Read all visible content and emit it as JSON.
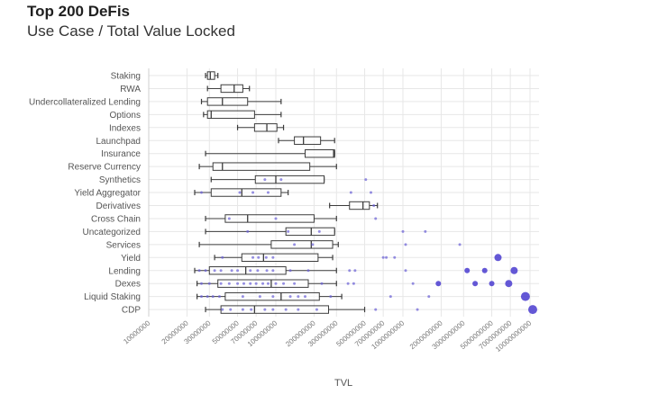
{
  "chart_data": {
    "type": "box",
    "title": "Top 200 DeFis",
    "subtitle": "Use Case / Total Value Locked",
    "xlabel": "TVL",
    "x_scale": "log",
    "xlim": [
      10000000,
      10000000000
    ],
    "x_ticks": [
      10000000,
      20000000,
      30000000,
      50000000,
      70000000,
      100000000,
      200000000,
      300000000,
      500000000,
      700000000,
      1000000000,
      2000000000,
      3000000000,
      5000000000,
      7000000000,
      10000000000
    ],
    "x_tick_labels": [
      "10000000",
      "20000000",
      "30000000",
      "50000000",
      "70000000",
      "100000000",
      "200000000",
      "300000000",
      "500000000",
      "700000000",
      "1000000000",
      "2000000000",
      "3000000000",
      "5000000000",
      "7000000000",
      "10000000000"
    ],
    "categories": [
      "Staking",
      "RWA",
      "Undercollateralized Lending",
      "Options",
      "Indexes",
      "Launchpad",
      "Insurance",
      "Reserve Currency",
      "Synthetics",
      "Yield Aggregator",
      "Derivatives",
      "Cross Chain",
      "Uncategorized",
      "Services",
      "Yield",
      "Lending",
      "Dexes",
      "Liquid Staking",
      "CDP"
    ],
    "boxes": [
      {
        "category": "Staking",
        "min": 28000000,
        "q1": 29000000,
        "median": 30500000,
        "q3": 33000000,
        "max": 35000000,
        "points": [],
        "outliers": []
      },
      {
        "category": "RWA",
        "min": 29000000,
        "q1": 37000000,
        "median": 47000000,
        "q3": 55000000,
        "max": 62000000,
        "points": [],
        "outliers": []
      },
      {
        "category": "Undercollateralized Lending",
        "min": 26000000,
        "q1": 29000000,
        "median": 38000000,
        "q3": 60000000,
        "max": 110000000,
        "points": [],
        "outliers": []
      },
      {
        "category": "Options",
        "min": 27000000,
        "q1": 29000000,
        "median": 31000000,
        "q3": 68000000,
        "max": 110000000,
        "points": [],
        "outliers": []
      },
      {
        "category": "Indexes",
        "min": 50000000,
        "q1": 68000000,
        "median": 85000000,
        "q3": 102000000,
        "max": 115000000,
        "points": [],
        "outliers": []
      },
      {
        "category": "Launchpad",
        "min": 105000000,
        "q1": 140000000,
        "median": 165000000,
        "q3": 225000000,
        "max": 290000000,
        "points": [],
        "outliers": []
      },
      {
        "category": "Insurance",
        "min": 28000000,
        "q1": 170000000,
        "median": 285000000,
        "q3": 290000000,
        "max": 290000000,
        "points": [],
        "outliers": []
      },
      {
        "category": "Reserve Currency",
        "min": 25000000,
        "q1": 32000000,
        "median": 38000000,
        "q3": 185000000,
        "max": 300000000,
        "points": [],
        "outliers": []
      },
      {
        "category": "Synthetics",
        "min": 31000000,
        "q1": 69000000,
        "median": 100000000,
        "q3": 240000000,
        "max": 240000000,
        "points": [
          82000000,
          110000000,
          510000000
        ],
        "outliers": []
      },
      {
        "category": "Yield Aggregator",
        "min": 23000000,
        "q1": 31000000,
        "median": 54000000,
        "q3": 110000000,
        "max": 125000000,
        "points": [
          26000000,
          52000000,
          66000000,
          87000000,
          390000000,
          560000000
        ],
        "outliers": []
      },
      {
        "category": "Derivatives",
        "min": 265000000,
        "q1": 380000000,
        "median": 485000000,
        "q3": 545000000,
        "max": 630000000,
        "points": [
          590000000
        ],
        "outliers": []
      },
      {
        "category": "Cross Chain",
        "min": 28000000,
        "q1": 40000000,
        "median": 60000000,
        "q3": 200000000,
        "max": 300000000,
        "points": [
          43000000,
          100000000,
          610000000
        ],
        "outliers": []
      },
      {
        "category": "Uncategorized",
        "min": 28000000,
        "q1": 120000000,
        "median": 190000000,
        "q3": 290000000,
        "max": 290000000,
        "points": [
          60000000,
          125000000,
          220000000,
          1000000000,
          1500000000
        ],
        "outliers": []
      },
      {
        "category": "Services",
        "min": 25000000,
        "q1": 92000000,
        "median": 190000000,
        "q3": 280000000,
        "max": 310000000,
        "points": [
          140000000,
          195000000,
          1050000000,
          2800000000
        ],
        "outliers": []
      },
      {
        "category": "Yield",
        "min": 33000000,
        "q1": 54000000,
        "median": 80000000,
        "q3": 215000000,
        "max": 280000000,
        "points": [
          38000000,
          66000000,
          73000000,
          84000000,
          95000000,
          700000000,
          740000000,
          860000000
        ],
        "outliers": [
          {
            "value": 5600000000,
            "size": 4
          }
        ]
      },
      {
        "category": "Lending",
        "min": 23000000,
        "q1": 30000000,
        "median": 58000000,
        "q3": 120000000,
        "max": 300000000,
        "points": [
          25000000,
          28000000,
          33000000,
          37000000,
          45000000,
          50000000,
          63000000,
          72000000,
          85000000,
          95000000,
          130000000,
          180000000,
          380000000,
          420000000,
          1050000000
        ],
        "outliers": [
          {
            "value": 3200000000,
            "size": 3
          },
          {
            "value": 4400000000,
            "size": 3
          },
          {
            "value": 7500000000,
            "size": 4
          }
        ]
      },
      {
        "category": "Dexes",
        "min": 24000000,
        "q1": 35000000,
        "median": 92000000,
        "q3": 180000000,
        "max": 300000000,
        "points": [
          26000000,
          30000000,
          37000000,
          43000000,
          50000000,
          56000000,
          63000000,
          70000000,
          79000000,
          87000000,
          100000000,
          115000000,
          140000000,
          230000000,
          370000000,
          410000000,
          1200000000
        ],
        "outliers": [
          {
            "value": 1900000000,
            "size": 3
          },
          {
            "value": 3700000000,
            "size": 3
          },
          {
            "value": 5000000000,
            "size": 3
          },
          {
            "value": 6800000000,
            "size": 4
          }
        ]
      },
      {
        "category": "Liquid Staking",
        "min": 24000000,
        "q1": 40000000,
        "median": 110000000,
        "q3": 220000000,
        "max": 330000000,
        "points": [
          26000000,
          29000000,
          32000000,
          36000000,
          55000000,
          75000000,
          95000000,
          130000000,
          150000000,
          170000000,
          270000000,
          800000000,
          1600000000
        ],
        "outliers": [
          {
            "value": 9200000000,
            "size": 5
          }
        ]
      },
      {
        "category": "CDP",
        "min": 28000000,
        "q1": 37000000,
        "median": 68000000,
        "q3": 260000000,
        "max": 500000000,
        "points": [
          38000000,
          44000000,
          55000000,
          64000000,
          82000000,
          95000000,
          120000000,
          150000000,
          210000000,
          610000000,
          1300000000
        ],
        "outliers": [
          {
            "value": 10500000000,
            "size": 5
          }
        ]
      }
    ],
    "colors": {
      "box": "#3c3c3c",
      "points": "#6a5fd6",
      "outliers": "#5346d2",
      "grid": "#e7e7e7"
    },
    "grid": true
  }
}
